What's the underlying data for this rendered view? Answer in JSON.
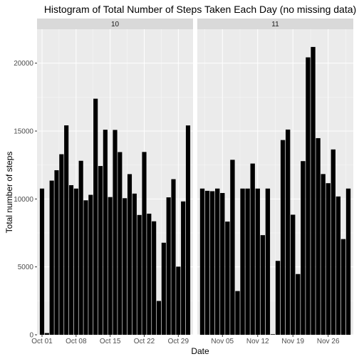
{
  "chart_data": {
    "type": "bar",
    "title": "Histogram of Total Number of Steps Taken Each Day (no missing data)",
    "xlabel": "Date",
    "ylabel": "Total number of steps",
    "ylim": [
      0,
      22500
    ],
    "y_ticks": [
      0,
      5000,
      10000,
      15000,
      20000
    ],
    "y_tick_labels": [
      "0",
      "5000",
      "10000",
      "15000",
      "20000"
    ],
    "grid": true,
    "colors": {
      "panel_bg": "#ebebeb",
      "strip_bg": "#d9d9d9",
      "bar": "#000000",
      "grid": "#ffffff"
    },
    "facets": [
      {
        "label": "10",
        "days_in_axis": 31,
        "x_ticks": [
          {
            "day": 1,
            "label": "Oct 01"
          },
          {
            "day": 8,
            "label": "Oct 08"
          },
          {
            "day": 15,
            "label": "Oct 15"
          },
          {
            "day": 22,
            "label": "Oct 22"
          },
          {
            "day": 29,
            "label": "Oct 29"
          }
        ],
        "dates": [
          "2012-10-01",
          "2012-10-02",
          "2012-10-03",
          "2012-10-04",
          "2012-10-05",
          "2012-10-06",
          "2012-10-07",
          "2012-10-08",
          "2012-10-09",
          "2012-10-10",
          "2012-10-11",
          "2012-10-12",
          "2012-10-13",
          "2012-10-14",
          "2012-10-15",
          "2012-10-16",
          "2012-10-17",
          "2012-10-18",
          "2012-10-19",
          "2012-10-20",
          "2012-10-21",
          "2012-10-22",
          "2012-10-23",
          "2012-10-24",
          "2012-10-25",
          "2012-10-26",
          "2012-10-27",
          "2012-10-28",
          "2012-10-29",
          "2012-10-30",
          "2012-10-31"
        ],
        "values": [
          10766,
          126,
          11352,
          12116,
          13294,
          15420,
          11015,
          10766,
          12811,
          9900,
          10304,
          17382,
          12426,
          15098,
          10139,
          15084,
          13452,
          10056,
          11829,
          10395,
          8821,
          13460,
          8918,
          8355,
          2492,
          6778,
          10119,
          11458,
          5018,
          9819,
          15414
        ]
      },
      {
        "label": "11",
        "days_in_axis": 30,
        "x_ticks": [
          {
            "day": 5,
            "label": "Nov 05"
          },
          {
            "day": 12,
            "label": "Nov 12"
          },
          {
            "day": 19,
            "label": "Nov 19"
          },
          {
            "day": 26,
            "label": "Nov 26"
          }
        ],
        "dates": [
          "2012-11-01",
          "2012-11-02",
          "2012-11-03",
          "2012-11-04",
          "2012-11-05",
          "2012-11-06",
          "2012-11-07",
          "2012-11-08",
          "2012-11-09",
          "2012-11-10",
          "2012-11-11",
          "2012-11-12",
          "2012-11-13",
          "2012-11-14",
          "2012-11-15",
          "2012-11-16",
          "2012-11-17",
          "2012-11-18",
          "2012-11-19",
          "2012-11-20",
          "2012-11-21",
          "2012-11-22",
          "2012-11-23",
          "2012-11-24",
          "2012-11-25",
          "2012-11-26",
          "2012-11-27",
          "2012-11-28",
          "2012-11-29",
          "2012-11-30"
        ],
        "values": [
          10766,
          10600,
          10571,
          10766,
          10439,
          8334,
          12883,
          3219,
          10766,
          10766,
          12608,
          10765,
          7336,
          10766,
          41,
          5441,
          14339,
          15110,
          8841,
          4472,
          12787,
          20427,
          21194,
          14478,
          11834,
          11162,
          13646,
          10183,
          7047,
          10766
        ]
      }
    ]
  }
}
